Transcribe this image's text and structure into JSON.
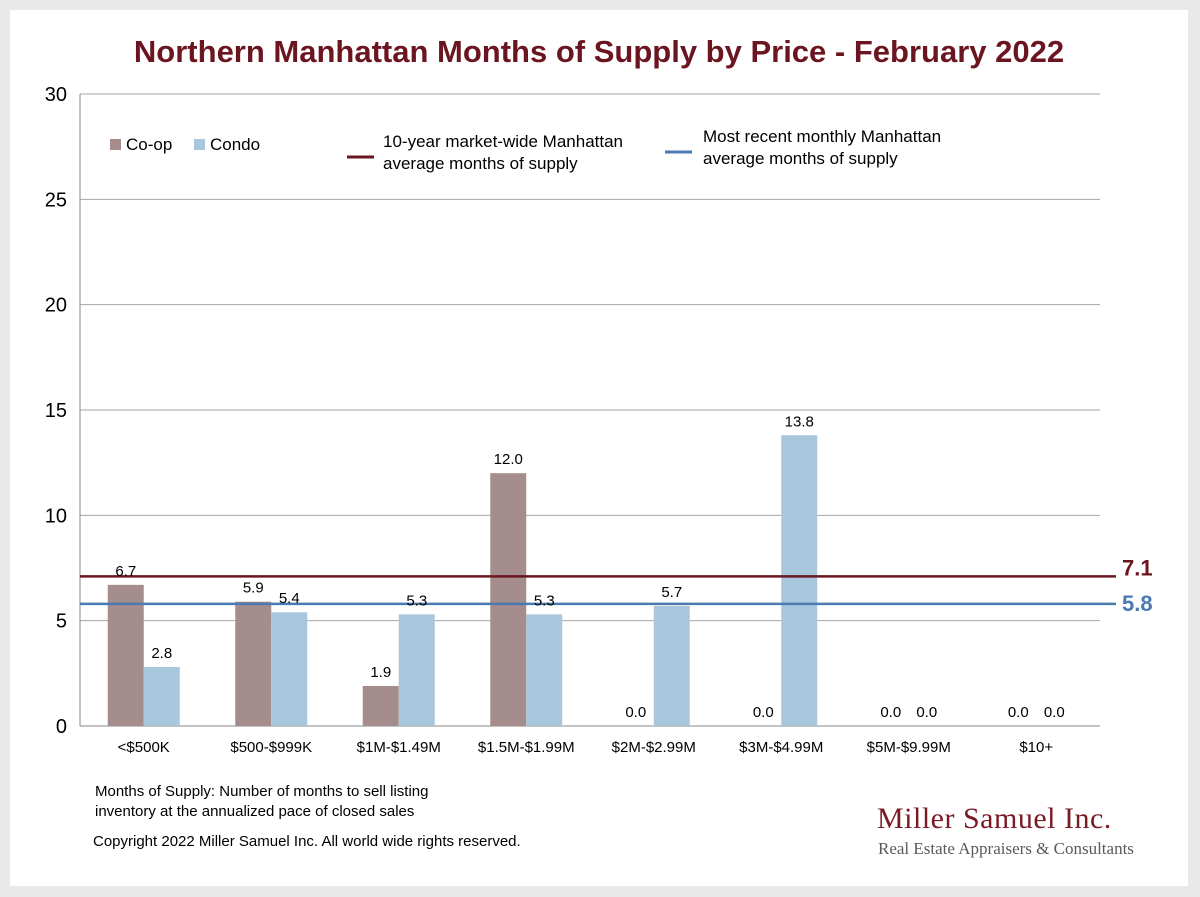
{
  "colors": {
    "coop": "#a58d8d",
    "condo": "#a9c7dc",
    "ten_year_line": "#6b1520",
    "recent_line": "#4a7ab0",
    "title": "#6b1520"
  },
  "chart_data": {
    "type": "bar",
    "title": "Northern Manhattan Months of Supply by Price - February 2022",
    "xlabel": "",
    "ylabel": "",
    "ylim": [
      0,
      30
    ],
    "yticks": [
      "0",
      "5",
      "10",
      "15",
      "20",
      "25",
      "30"
    ],
    "categories": [
      "<$500K",
      "$500-$999K",
      "$1M-$1.49M",
      "$1.5M-$1.99M",
      "$2M-$2.99M",
      "$3M-$4.99M",
      "$5M-$9.99M",
      "$10+"
    ],
    "series": [
      {
        "name": "Co-op",
        "values": [
          6.7,
          5.9,
          1.9,
          12.0,
          0.0,
          0.0,
          0.0,
          0.0
        ],
        "labels": [
          "6.7",
          "5.9",
          "1.9",
          "12.0",
          "0.0",
          "0.0",
          "0.0",
          "0.0"
        ]
      },
      {
        "name": "Condo",
        "values": [
          2.8,
          5.4,
          5.3,
          5.3,
          5.7,
          13.8,
          0.0,
          0.0
        ],
        "labels": [
          "2.8",
          "5.4",
          "5.3",
          "5.3",
          "5.7",
          "13.8",
          "0.0",
          "0.0"
        ]
      }
    ],
    "reference_lines": [
      {
        "name_lines": [
          "10-year market-wide Manhattan",
          "average months of supply"
        ],
        "value": 7.1,
        "label": "7.1"
      },
      {
        "name_lines": [
          "Most recent monthly Manhattan",
          "average months of supply"
        ],
        "value": 5.8,
        "label": "5.8"
      }
    ],
    "grid": true,
    "legend_position": "top"
  },
  "footnote": {
    "line1": "Months of Supply: Number of months to sell listing",
    "line2": "inventory at the annualized pace of closed sales",
    "copyright": "Copyright 2022 Miller Samuel Inc.  All world wide rights reserved."
  },
  "branding": {
    "name": "Miller Samuel Inc.",
    "tagline": "Real Estate Appraisers & Consultants"
  }
}
